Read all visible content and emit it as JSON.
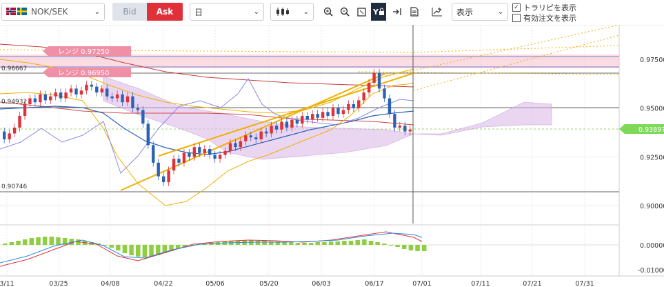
{
  "toolbar": {
    "pair": "NOK/SEK",
    "bid_label": "Bid",
    "ask_label": "Ask",
    "timeframe": "日",
    "display_label": "表示",
    "trendline_label": "トラリピを表示",
    "trendline_checked": true,
    "orders_label": "有効注文を表示",
    "orders_checked": false
  },
  "chart": {
    "price_labels": [
      "0.97500",
      "0.95000",
      "0.92500",
      "0.90000"
    ],
    "price_values": [
      0.975,
      0.95,
      0.925,
      0.9
    ],
    "current_price": "0.93897",
    "current_value": 0.93897,
    "level_high": "0.96667",
    "level_mid": "0.94932",
    "level_low": "0.90746",
    "range_upper": "レンジ 0.97250",
    "range_lower": "レンジ 0.96950",
    "dates": [
      "3/11",
      "03/25",
      "04/08",
      "04/22",
      "05/06",
      "05/20",
      "06/03",
      "06/17",
      "07/01",
      "07/11",
      "07/21",
      "07/31"
    ],
    "osc_labels": [
      "0.00000",
      "-0.01000"
    ]
  },
  "colors": {
    "ask": "#e0303a",
    "bid_bg": "#dfe3ea",
    "up_candle": "#e0303a",
    "down_candle": "#2b62b8",
    "price_tag": "#7ed957",
    "range_band": "#f7c4cf"
  }
}
